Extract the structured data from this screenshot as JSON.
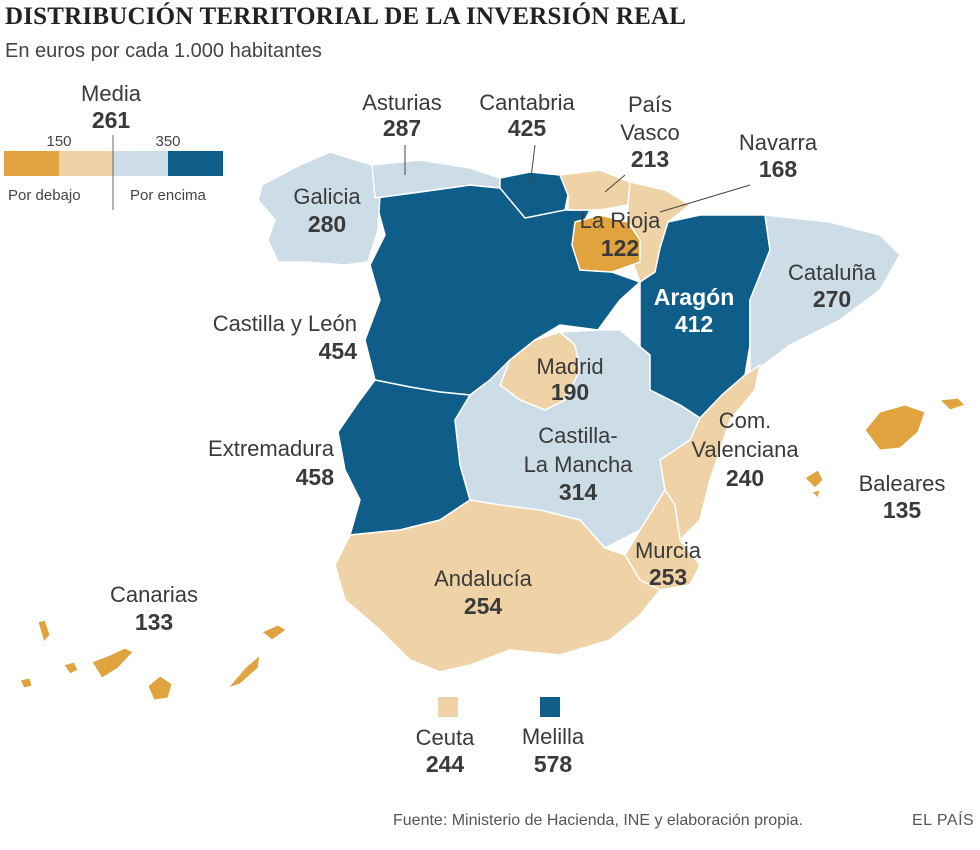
{
  "title": "DISTRIBUCIÓN TERRITORIAL DE LA INVERSIÓN REAL",
  "subtitle": "En euros por cada 1.000 habitantes",
  "legend": {
    "media_label": "Media",
    "media_value": "261",
    "thresholds": [
      "150",
      "350"
    ],
    "below_label": "Por debajo",
    "above_label": "Por encima",
    "colors": [
      "#e0a33d",
      "#efd3a6",
      "#cddde8",
      "#0f5e8a"
    ]
  },
  "regions": [
    {
      "id": "galicia",
      "name": "Galicia",
      "value": "280",
      "color": "#cddde8"
    },
    {
      "id": "asturias",
      "name": "Asturias",
      "value": "287",
      "color": "#cddde8"
    },
    {
      "id": "cantabria",
      "name": "Cantabria",
      "value": "425",
      "color": "#0f5e8a"
    },
    {
      "id": "pais-vasco",
      "name": "País Vasco",
      "value": "213",
      "color": "#efd3a6"
    },
    {
      "id": "navarra",
      "name": "Navarra",
      "value": "168",
      "color": "#efd3a6"
    },
    {
      "id": "la-rioja",
      "name": "La Rioja",
      "value": "122",
      "color": "#e0a33d"
    },
    {
      "id": "aragon",
      "name": "Aragón",
      "value": "412",
      "color": "#0f5e8a"
    },
    {
      "id": "cataluna",
      "name": "Cataluña",
      "value": "270",
      "color": "#cddde8"
    },
    {
      "id": "castilla-leon",
      "name": "Castilla y León",
      "value": "454",
      "color": "#0f5e8a"
    },
    {
      "id": "madrid",
      "name": "Madrid",
      "value": "190",
      "color": "#efd3a6"
    },
    {
      "id": "castilla-la-mancha",
      "name": "Castilla-La Mancha",
      "value": "314",
      "color": "#cddde8"
    },
    {
      "id": "extremadura",
      "name": "Extremadura",
      "value": "458",
      "color": "#0f5e8a"
    },
    {
      "id": "com-valenciana",
      "name": "Com. Valenciana",
      "value": "240",
      "color": "#efd3a6"
    },
    {
      "id": "murcia",
      "name": "Murcia",
      "value": "253",
      "color": "#efd3a6"
    },
    {
      "id": "andalucia",
      "name": "Andalucía",
      "value": "254",
      "color": "#efd3a6"
    },
    {
      "id": "baleares",
      "name": "Baleares",
      "value": "135",
      "color": "#e0a33d"
    },
    {
      "id": "canarias",
      "name": "Canarias",
      "value": "133",
      "color": "#e0a33d"
    },
    {
      "id": "ceuta",
      "name": "Ceuta",
      "value": "244",
      "color": "#efd3a6"
    },
    {
      "id": "melilla",
      "name": "Melilla",
      "value": "578",
      "color": "#0f5e8a"
    }
  ],
  "labels": {
    "asturias": "Asturias",
    "cantabria": "Cantabria",
    "pais_vasco_1": "País",
    "pais_vasco_2": "Vasco",
    "navarra": "Navarra",
    "galicia": "Galicia",
    "la_rioja": "La Rioja",
    "cataluna": "Cataluña",
    "aragon": "Aragón",
    "castilla_leon": "Castilla y León",
    "madrid": "Madrid",
    "clm_1": "Castilla-",
    "clm_2": "La Mancha",
    "extremadura": "Extremadura",
    "valenciana_1": "Com.",
    "valenciana_2": "Valenciana",
    "baleares": "Baleares",
    "murcia": "Murcia",
    "andalucia": "Andalucía",
    "canarias": "Canarias",
    "ceuta": "Ceuta",
    "melilla": "Melilla"
  },
  "values": {
    "asturias": "287",
    "cantabria": "425",
    "pais_vasco": "213",
    "navarra": "168",
    "galicia": "280",
    "la_rioja": "122",
    "cataluna": "270",
    "aragon": "412",
    "castilla_leon": "454",
    "madrid": "190",
    "clm": "314",
    "extremadura": "458",
    "valenciana": "240",
    "baleares": "135",
    "murcia": "253",
    "andalucia": "254",
    "canarias": "133",
    "ceuta": "244",
    "melilla": "578"
  },
  "source": "Fuente: Ministerio de Hacienda, INE y elaboración propia.",
  "brand": "EL PAÍS"
}
